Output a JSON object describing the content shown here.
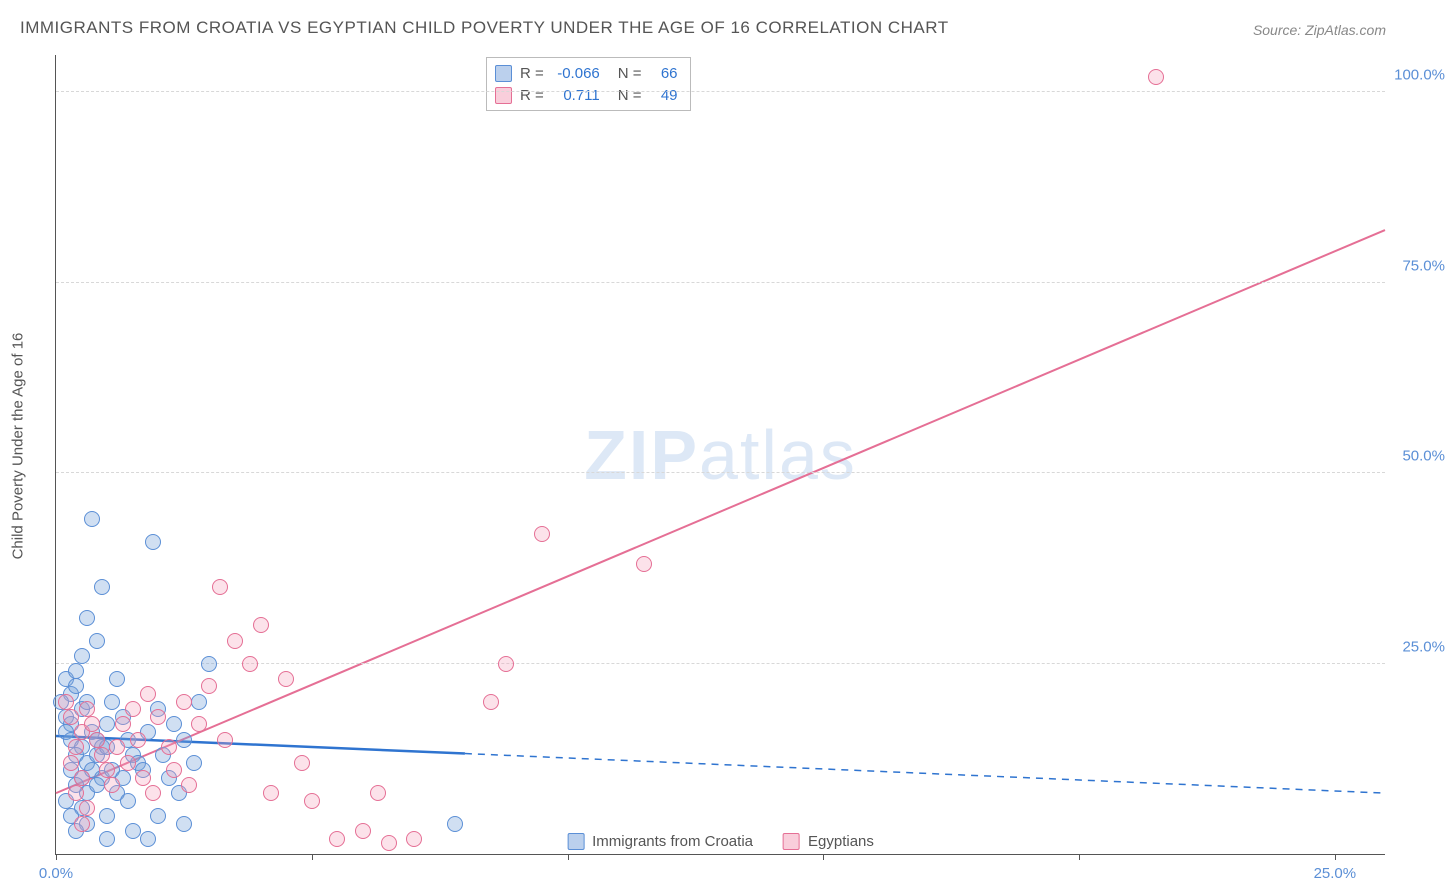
{
  "title": "IMMIGRANTS FROM CROATIA VS EGYPTIAN CHILD POVERTY UNDER THE AGE OF 16 CORRELATION CHART",
  "source": "Source: ZipAtlas.com",
  "watermark_bold": "ZIP",
  "watermark_rest": "atlas",
  "chart": {
    "type": "scatter",
    "y_axis_label": "Child Poverty Under the Age of 16",
    "background_color": "#ffffff",
    "grid_color": "#d8d8d8",
    "axis_color": "#555555",
    "label_fontsize": 15,
    "title_fontsize": 17,
    "marker_radius": 8,
    "x_range": [
      0,
      26
    ],
    "y_range": [
      0,
      105
    ],
    "y_ticks": [
      {
        "value": 25,
        "label": "25.0%"
      },
      {
        "value": 50,
        "label": "50.0%"
      },
      {
        "value": 75,
        "label": "75.0%"
      },
      {
        "value": 100,
        "label": "100.0%"
      }
    ],
    "x_ticks": [
      {
        "value": 0,
        "label": "0.0%"
      },
      {
        "value": 5,
        "label": ""
      },
      {
        "value": 10,
        "label": ""
      },
      {
        "value": 15,
        "label": ""
      },
      {
        "value": 20,
        "label": ""
      },
      {
        "value": 25,
        "label": "25.0%"
      }
    ],
    "series": [
      {
        "name": "Immigrants from Croatia",
        "color_fill": "rgba(120,162,219,0.35)",
        "color_stroke": "#5b8fd6",
        "class": "blue",
        "stats": {
          "R": "-0.066",
          "N": "66"
        },
        "trendline": {
          "x1": 0,
          "y1": 15.5,
          "x2": 8,
          "y2": 13.2,
          "solid": true,
          "width": 2.5,
          "color": "#2f74d0",
          "dash_x2": 26,
          "dash_y2": 8.0
        },
        "points": [
          {
            "x": 0.2,
            "y": 23
          },
          {
            "x": 0.3,
            "y": 21
          },
          {
            "x": 0.1,
            "y": 20
          },
          {
            "x": 0.4,
            "y": 22
          },
          {
            "x": 0.2,
            "y": 18
          },
          {
            "x": 0.3,
            "y": 17
          },
          {
            "x": 0.5,
            "y": 19
          },
          {
            "x": 0.2,
            "y": 16
          },
          {
            "x": 0.4,
            "y": 24
          },
          {
            "x": 0.6,
            "y": 20
          },
          {
            "x": 0.3,
            "y": 15
          },
          {
            "x": 0.5,
            "y": 14
          },
          {
            "x": 0.7,
            "y": 16
          },
          {
            "x": 0.4,
            "y": 13
          },
          {
            "x": 0.6,
            "y": 12
          },
          {
            "x": 0.8,
            "y": 15
          },
          {
            "x": 0.3,
            "y": 11
          },
          {
            "x": 0.5,
            "y": 10
          },
          {
            "x": 0.9,
            "y": 14
          },
          {
            "x": 0.4,
            "y": 9
          },
          {
            "x": 0.6,
            "y": 8
          },
          {
            "x": 0.8,
            "y": 13
          },
          {
            "x": 0.2,
            "y": 7
          },
          {
            "x": 0.5,
            "y": 6
          },
          {
            "x": 0.7,
            "y": 11
          },
          {
            "x": 0.3,
            "y": 5
          },
          {
            "x": 0.6,
            "y": 4
          },
          {
            "x": 0.9,
            "y": 10
          },
          {
            "x": 0.4,
            "y": 3
          },
          {
            "x": 0.8,
            "y": 9
          },
          {
            "x": 1.0,
            "y": 17
          },
          {
            "x": 1.1,
            "y": 20
          },
          {
            "x": 1.2,
            "y": 23
          },
          {
            "x": 1.0,
            "y": 14
          },
          {
            "x": 1.3,
            "y": 18
          },
          {
            "x": 1.1,
            "y": 11
          },
          {
            "x": 1.4,
            "y": 15
          },
          {
            "x": 1.2,
            "y": 8
          },
          {
            "x": 1.5,
            "y": 13
          },
          {
            "x": 1.0,
            "y": 5
          },
          {
            "x": 1.3,
            "y": 10
          },
          {
            "x": 1.6,
            "y": 12
          },
          {
            "x": 1.4,
            "y": 7
          },
          {
            "x": 1.7,
            "y": 11
          },
          {
            "x": 0.7,
            "y": 44
          },
          {
            "x": 0.9,
            "y": 35
          },
          {
            "x": 0.6,
            "y": 31
          },
          {
            "x": 1.9,
            "y": 41
          },
          {
            "x": 1.5,
            "y": 3
          },
          {
            "x": 1.8,
            "y": 16
          },
          {
            "x": 2.0,
            "y": 19
          },
          {
            "x": 2.1,
            "y": 13
          },
          {
            "x": 2.2,
            "y": 10
          },
          {
            "x": 2.3,
            "y": 17
          },
          {
            "x": 2.5,
            "y": 15
          },
          {
            "x": 2.4,
            "y": 8
          },
          {
            "x": 2.7,
            "y": 12
          },
          {
            "x": 2.8,
            "y": 20
          },
          {
            "x": 3.0,
            "y": 25
          },
          {
            "x": 2.0,
            "y": 5
          },
          {
            "x": 2.5,
            "y": 4
          },
          {
            "x": 1.8,
            "y": 2
          },
          {
            "x": 0.5,
            "y": 26
          },
          {
            "x": 0.8,
            "y": 28
          },
          {
            "x": 1.0,
            "y": 2
          },
          {
            "x": 7.8,
            "y": 4
          }
        ]
      },
      {
        "name": "Egyptians",
        "color_fill": "rgba(244,158,184,0.3)",
        "color_stroke": "#e56f95",
        "class": "pink",
        "stats": {
          "R": "0.711",
          "N": "49"
        },
        "trendline": {
          "x1": 0,
          "y1": 8,
          "x2": 26,
          "y2": 82,
          "solid": true,
          "width": 2,
          "color": "#e56f95"
        },
        "points": [
          {
            "x": 0.2,
            "y": 20
          },
          {
            "x": 0.3,
            "y": 18
          },
          {
            "x": 0.5,
            "y": 16
          },
          {
            "x": 0.4,
            "y": 14
          },
          {
            "x": 0.6,
            "y": 19
          },
          {
            "x": 0.3,
            "y": 12
          },
          {
            "x": 0.7,
            "y": 17
          },
          {
            "x": 0.5,
            "y": 10
          },
          {
            "x": 0.8,
            "y": 15
          },
          {
            "x": 0.4,
            "y": 8
          },
          {
            "x": 0.9,
            "y": 13
          },
          {
            "x": 0.6,
            "y": 6
          },
          {
            "x": 1.0,
            "y": 11
          },
          {
            "x": 0.5,
            "y": 4
          },
          {
            "x": 1.1,
            "y": 9
          },
          {
            "x": 1.2,
            "y": 14
          },
          {
            "x": 1.3,
            "y": 17
          },
          {
            "x": 1.5,
            "y": 19
          },
          {
            "x": 1.4,
            "y": 12
          },
          {
            "x": 1.6,
            "y": 15
          },
          {
            "x": 1.8,
            "y": 21
          },
          {
            "x": 1.7,
            "y": 10
          },
          {
            "x": 2.0,
            "y": 18
          },
          {
            "x": 1.9,
            "y": 8
          },
          {
            "x": 2.2,
            "y": 14
          },
          {
            "x": 2.5,
            "y": 20
          },
          {
            "x": 2.3,
            "y": 11
          },
          {
            "x": 2.8,
            "y": 17
          },
          {
            "x": 2.6,
            "y": 9
          },
          {
            "x": 3.0,
            "y": 22
          },
          {
            "x": 3.2,
            "y": 35
          },
          {
            "x": 3.5,
            "y": 28
          },
          {
            "x": 3.8,
            "y": 25
          },
          {
            "x": 3.3,
            "y": 15
          },
          {
            "x": 4.0,
            "y": 30
          },
          {
            "x": 4.2,
            "y": 8
          },
          {
            "x": 4.5,
            "y": 23
          },
          {
            "x": 4.8,
            "y": 12
          },
          {
            "x": 5.0,
            "y": 7
          },
          {
            "x": 5.5,
            "y": 2
          },
          {
            "x": 6.0,
            "y": 3
          },
          {
            "x": 6.3,
            "y": 8
          },
          {
            "x": 6.5,
            "y": 1.5
          },
          {
            "x": 7.0,
            "y": 2
          },
          {
            "x": 8.8,
            "y": 25
          },
          {
            "x": 9.5,
            "y": 42
          },
          {
            "x": 8.5,
            "y": 20
          },
          {
            "x": 11.5,
            "y": 38
          },
          {
            "x": 21.5,
            "y": 102
          }
        ]
      }
    ],
    "bottom_legend": [
      {
        "class": "blue",
        "label": "Immigrants from Croatia"
      },
      {
        "class": "pink",
        "label": "Egyptians"
      }
    ]
  }
}
